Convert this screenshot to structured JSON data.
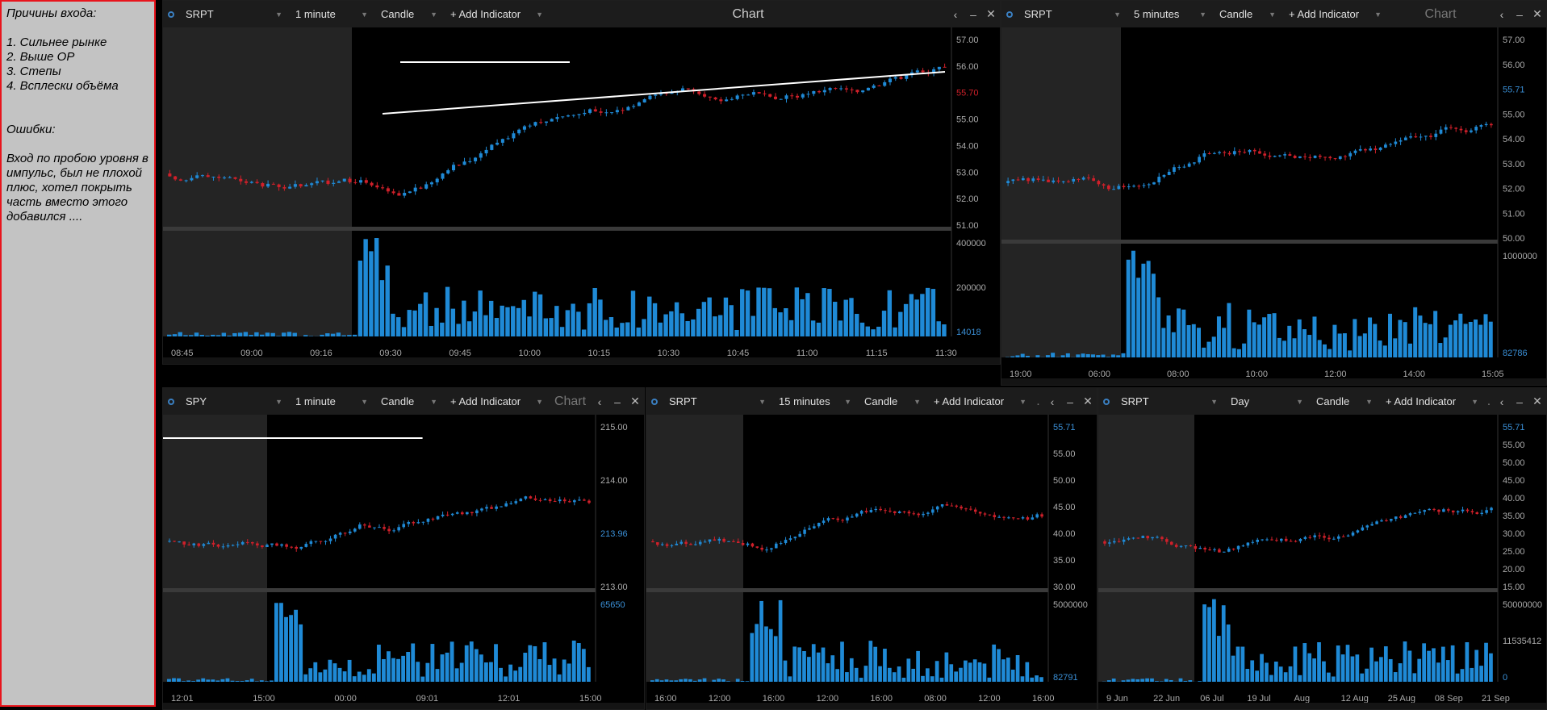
{
  "notes": {
    "heading": "Причины входа:",
    "reasons": [
      "1. Сильнее рынке",
      "2. Выше ОР",
      "3. Степы",
      "4. Всплески объёма"
    ],
    "errors_heading": "Ошибки:",
    "errors_text": "Вход по пробою уровня в импульс, был не плохой плюс, хотел покрыть часть вместо этого добавился ...."
  },
  "charts": [
    {
      "symbol": "SRPT",
      "interval": "1 minute",
      "style": "Candle",
      "add_indicator": "+ Add Indicator",
      "title": "Chart",
      "price_ticks": [
        "57.00",
        "56.00",
        "55.70",
        "55.00",
        "54.00",
        "53.00",
        "52.00",
        "51.00"
      ],
      "current_price": "55.70",
      "volume_ticks": [
        "400000",
        "200000",
        "14018"
      ],
      "time_ticks": [
        "08:45",
        "09:00",
        "09:16",
        "09:30",
        "09:45",
        "10:00",
        "10:15",
        "10:30",
        "10:45",
        "11:00",
        "11:15",
        "11:30"
      ]
    },
    {
      "symbol": "SRPT",
      "interval": "5 minutes",
      "style": "Candle",
      "add_indicator": "+ Add Indicator",
      "title": "Chart",
      "price_ticks": [
        "57.00",
        "56.00",
        "55.71",
        "55.00",
        "54.00",
        "53.00",
        "52.00",
        "51.00",
        "50.00"
      ],
      "current_price": "55.71",
      "volume_ticks": [
        "1000000",
        "82786"
      ],
      "time_ticks": [
        "19:00",
        "06:00",
        "08:00",
        "10:00",
        "12:00",
        "14:00",
        "15:05"
      ]
    },
    {
      "symbol": "SPY",
      "interval": "1 minute",
      "style": "Candle",
      "add_indicator": "+ Add Indicator",
      "title": "Chart",
      "price_ticks": [
        "215.00",
        "214.00",
        "213.96",
        "213.00"
      ],
      "current_price": "213.96",
      "volume_ticks": [
        "65650"
      ],
      "time_ticks": [
        "12:01",
        "15:00",
        "00:00",
        "09:01",
        "12:01",
        "15:00"
      ]
    },
    {
      "symbol": "SRPT",
      "interval": "15 minutes",
      "style": "Candle",
      "add_indicator": "+ Add Indicator",
      "title": ".",
      "price_ticks": [
        "55.71",
        "55.00",
        "50.00",
        "45.00",
        "40.00",
        "35.00",
        "30.00"
      ],
      "current_price": "55.71",
      "volume_ticks": [
        "5000000",
        "82791"
      ],
      "time_ticks": [
        "16:00",
        "12:00",
        "16:00",
        "12:00",
        "16:00",
        "08:00",
        "12:00",
        "16:00"
      ]
    },
    {
      "symbol": "SRPT",
      "interval": "Day",
      "style": "Candle",
      "add_indicator": "+ Add Indicator",
      "title": ".",
      "price_ticks": [
        "55.71",
        "55.00",
        "50.00",
        "45.00",
        "40.00",
        "35.00",
        "30.00",
        "25.00",
        "20.00",
        "15.00"
      ],
      "current_price": "55.71",
      "volume_ticks": [
        "50000000",
        "11535412",
        "0"
      ],
      "time_ticks": [
        "9 Jun",
        "22 Jun",
        "06 Jul",
        "19 Jul",
        "Aug",
        "12 Aug",
        "25 Aug",
        "08 Sep",
        "21 Sep"
      ]
    }
  ],
  "tools": [
    "grip-icon",
    "pointer-icon",
    "zoom-icon",
    "hand-icon",
    "line-icon",
    "arrow-icon",
    "hline-icon",
    "rect-icon"
  ],
  "colors": {
    "up": "#1f8ad6",
    "down": "#d0202a",
    "toolbar": "#1c1c1c",
    "active_tool": "#0e5d99"
  }
}
